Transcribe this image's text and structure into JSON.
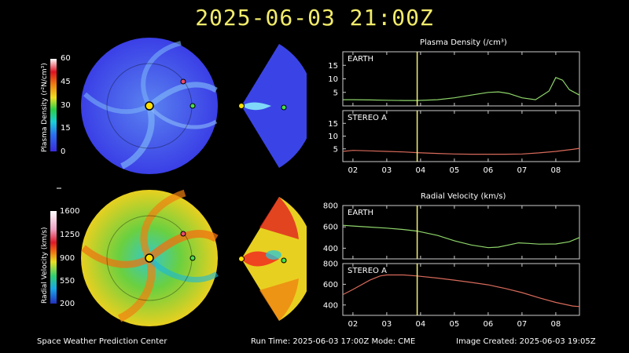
{
  "timestamp": "2025-06-03 21:00Z",
  "colors": {
    "sun": "#ffe000",
    "earth": "#48e04a",
    "stereo": "#e84a6a",
    "earth_line": "#8ed66a",
    "stereo_line": "#d86a5a",
    "marker": "#f5f07a",
    "frame": "#cccccc"
  },
  "density_colorbar": {
    "label": "Plasma Density (r²N/cm³)",
    "ticks": [
      "60",
      "45",
      "30",
      "15",
      "0"
    ]
  },
  "velocity_colorbar": {
    "label": "Radial Velocity (km/s)",
    "ticks": [
      "1600",
      "1250",
      "900",
      "550",
      "200"
    ]
  },
  "density_panel": {
    "title": "Plasma Density (/cm³)",
    "earth_label": "EARTH",
    "stereo_label": "STEREO A",
    "earth_yticks": [
      "15",
      "10",
      "5"
    ],
    "stereo_yticks": [
      "15",
      "10",
      "5"
    ]
  },
  "velocity_panel": {
    "title": "Radial Velocity (km/s)",
    "earth_label": "EARTH",
    "stereo_label": "STEREO A",
    "earth_yticks": [
      "800",
      "600",
      "400"
    ],
    "stereo_yticks": [
      "800",
      "600",
      "400"
    ]
  },
  "xticks": [
    "02",
    "03",
    "04",
    "05",
    "06",
    "07",
    "08"
  ],
  "footer": {
    "left": "Space Weather Prediction Center",
    "run_time": "Run Time: 2025-06-03 17:00Z  Mode: CME",
    "image_created": "Image Created: 2025-06-03 19:05Z"
  },
  "chart_data": [
    {
      "type": "line",
      "title": "Plasma Density (/cm³)",
      "panel": "EARTH",
      "x": [
        1.7,
        2.0,
        2.5,
        3.0,
        3.5,
        3.9,
        4.5,
        5.0,
        5.5,
        6.0,
        6.3,
        6.6,
        7.0,
        7.4,
        7.8,
        8.0,
        8.2,
        8.4,
        8.7
      ],
      "y": [
        2.3,
        2.3,
        2.2,
        2.1,
        2.0,
        2.0,
        2.3,
        3.0,
        4.0,
        5.0,
        5.2,
        4.6,
        3.0,
        2.3,
        5.5,
        10.5,
        9.5,
        6.0,
        4.0
      ],
      "ylim": [
        0,
        20
      ],
      "xlim": [
        1.7,
        8.7
      ],
      "marker_x": 3.9
    },
    {
      "type": "line",
      "title": "Plasma Density (/cm³)",
      "panel": "STEREO A",
      "x": [
        1.7,
        2.0,
        2.5,
        3.0,
        3.5,
        3.9,
        4.5,
        5.0,
        5.5,
        6.0,
        6.5,
        7.0,
        7.5,
        8.0,
        8.5,
        8.7
      ],
      "y": [
        4.0,
        4.4,
        4.2,
        4.0,
        3.8,
        3.5,
        3.2,
        3.0,
        2.9,
        2.9,
        2.9,
        3.0,
        3.4,
        4.0,
        4.8,
        5.2
      ],
      "ylim": [
        0,
        20
      ],
      "xlim": [
        1.7,
        8.7
      ],
      "marker_x": 3.9
    },
    {
      "type": "line",
      "title": "Radial Velocity (km/s)",
      "panel": "EARTH",
      "x": [
        1.7,
        2.0,
        2.5,
        3.0,
        3.5,
        3.9,
        4.5,
        5.0,
        5.5,
        6.0,
        6.3,
        6.6,
        6.9,
        7.2,
        7.5,
        8.0,
        8.4,
        8.7
      ],
      "y": [
        615,
        608,
        598,
        588,
        575,
        560,
        520,
        470,
        430,
        405,
        410,
        430,
        450,
        445,
        438,
        440,
        460,
        500
      ],
      "ylim": [
        300,
        800
      ],
      "xlim": [
        1.7,
        8.7
      ],
      "marker_x": 3.9
    },
    {
      "type": "line",
      "title": "Radial Velocity (km/s)",
      "panel": "STEREO A",
      "x": [
        1.7,
        2.0,
        2.5,
        2.8,
        3.0,
        3.5,
        3.9,
        4.5,
        5.0,
        5.5,
        6.0,
        6.5,
        7.0,
        7.5,
        8.0,
        8.5,
        8.7
      ],
      "y": [
        500,
        550,
        640,
        680,
        690,
        690,
        680,
        660,
        640,
        618,
        595,
        560,
        520,
        470,
        425,
        390,
        385
      ],
      "ylim": [
        300,
        800
      ],
      "xlim": [
        1.7,
        8.7
      ],
      "marker_x": 3.9
    }
  ]
}
